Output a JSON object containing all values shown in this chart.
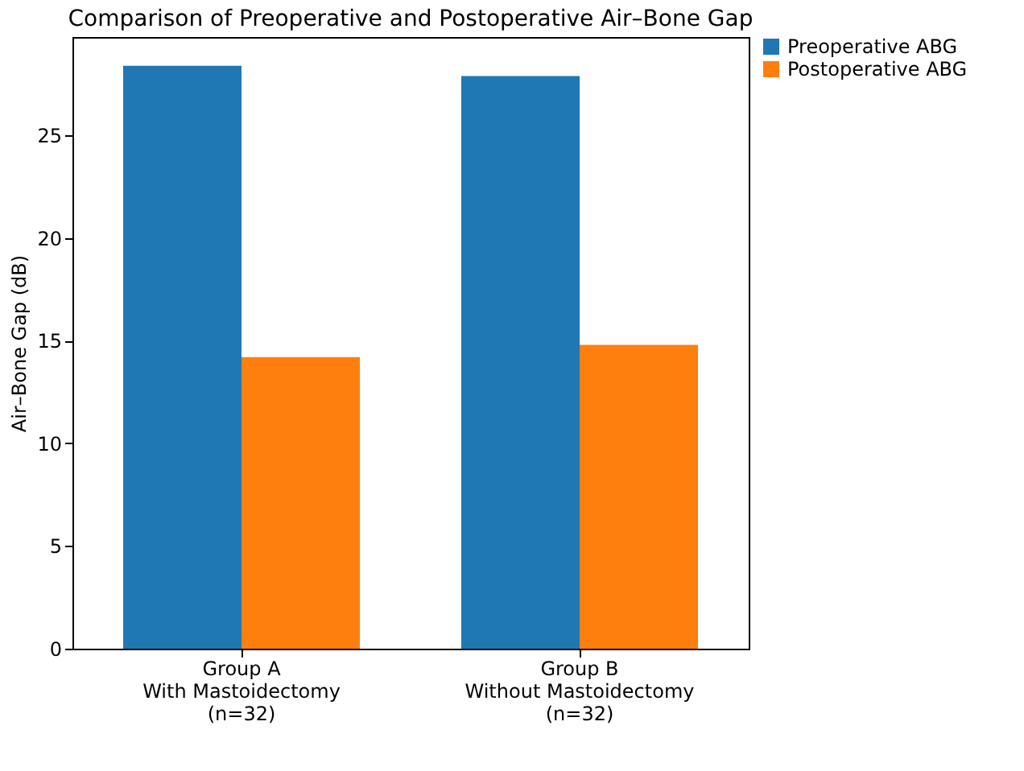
{
  "chart_data": {
    "type": "bar",
    "title": "Comparison of Preoperative and Postoperative Air–Bone Gap",
    "ylabel": "Air–Bone Gap (dB)",
    "categories": [
      "Group A\nWith Mastoidectomy\n(n=32)",
      "Group B\nWithout Mastoidectomy\n(n=32)"
    ],
    "series": [
      {
        "name": "Preoperative ABG",
        "color": "#1f77b4",
        "values": [
          28.4,
          27.9
        ]
      },
      {
        "name": "Postoperative ABG",
        "color": "#ff7f0e",
        "values": [
          14.2,
          14.8
        ]
      }
    ],
    "ylim": [
      0,
      29.8
    ],
    "yticks": [
      0,
      5,
      10,
      15,
      20,
      25
    ],
    "grid": false,
    "legend": "top right"
  }
}
